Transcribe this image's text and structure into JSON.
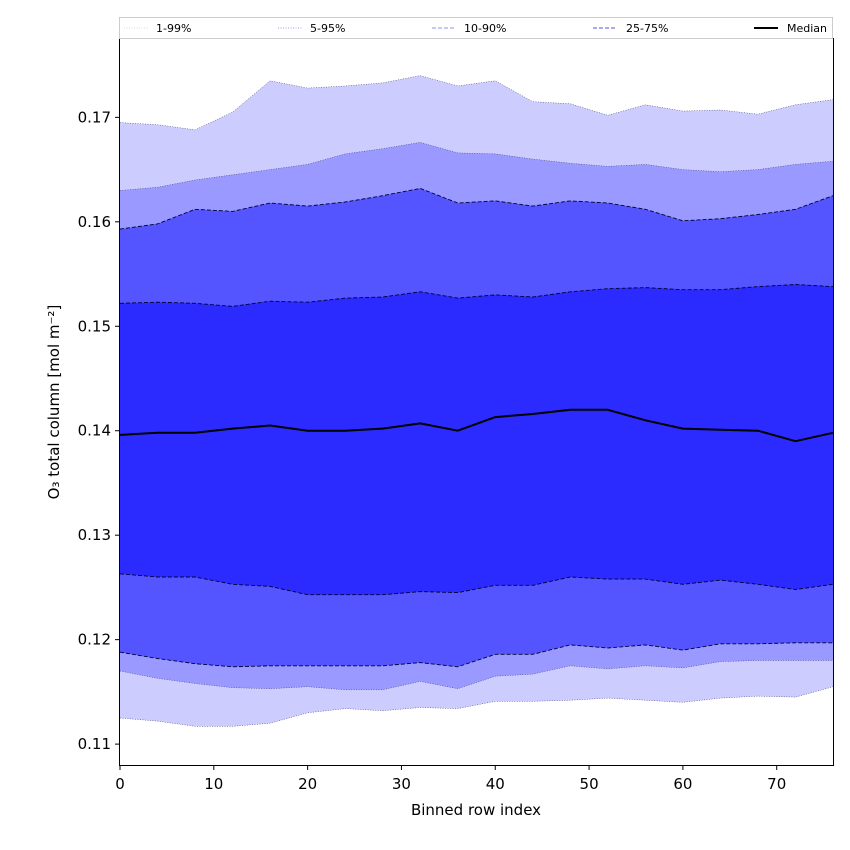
{
  "chart_data": {
    "type": "area",
    "xlabel": "Binned row index",
    "ylabel": "O₃ total column [mol m⁻²]",
    "xlim": [
      0,
      76
    ],
    "ylim": [
      0.108,
      0.1775
    ],
    "x_ticks": [
      0,
      10,
      20,
      30,
      40,
      50,
      60,
      70
    ],
    "y_ticks": [
      0.11,
      0.12,
      0.13,
      0.14,
      0.15,
      0.16,
      0.17
    ],
    "y_tick_labels": [
      "0.11",
      "0.12",
      "0.13",
      "0.14",
      "0.15",
      "0.16",
      "0.17"
    ],
    "grid": false,
    "legend_placement": "top",
    "legend": [
      {
        "label": "1-99%",
        "color": "#d3d3f5",
        "style": "dotted"
      },
      {
        "label": "5-95%",
        "color": "#9a9af5",
        "style": "dotted"
      },
      {
        "label": "10-90%",
        "color": "#8c8cf0",
        "style": "dashed"
      },
      {
        "label": "25-75%",
        "color": "#5555e8",
        "style": "dashed"
      },
      {
        "label": "Median",
        "color": "#000000",
        "style": "solid"
      }
    ],
    "x": [
      0,
      4,
      8,
      12,
      16,
      20,
      24,
      28,
      32,
      36,
      40,
      44,
      48,
      52,
      56,
      60,
      64,
      68,
      72,
      76
    ],
    "bands": [
      {
        "name": "1-99%",
        "fill": "#ccccff",
        "lower": [
          0.1125,
          0.1122,
          0.1117,
          0.1117,
          0.112,
          0.113,
          0.1134,
          0.1132,
          0.1135,
          0.1134,
          0.1141,
          0.1141,
          0.1142,
          0.1144,
          0.1142,
          0.114,
          0.1144,
          0.1146,
          0.1145,
          0.1155
        ],
        "upper": [
          0.1695,
          0.1693,
          0.1688,
          0.1705,
          0.1735,
          0.1728,
          0.173,
          0.1733,
          0.174,
          0.173,
          0.1735,
          0.1715,
          0.1713,
          0.1702,
          0.1712,
          0.1706,
          0.1707,
          0.1703,
          0.1712,
          0.1717
        ]
      },
      {
        "name": "5-95%",
        "fill": "#9999ff",
        "lower": [
          0.117,
          0.1163,
          0.1158,
          0.1154,
          0.1153,
          0.1155,
          0.1152,
          0.1152,
          0.116,
          0.1153,
          0.1165,
          0.1167,
          0.1175,
          0.1172,
          0.1175,
          0.1173,
          0.1179,
          0.118,
          0.118,
          0.118
        ],
        "upper": [
          0.163,
          0.1633,
          0.164,
          0.1645,
          0.165,
          0.1655,
          0.1665,
          0.167,
          0.1676,
          0.1666,
          0.1665,
          0.166,
          0.1656,
          0.1653,
          0.1655,
          0.165,
          0.1648,
          0.165,
          0.1655,
          0.1658
        ]
      },
      {
        "name": "10-90%",
        "fill": "#5555ff",
        "lower": [
          0.1188,
          0.1182,
          0.1177,
          0.1174,
          0.1175,
          0.1175,
          0.1175,
          0.1175,
          0.1178,
          0.1174,
          0.1186,
          0.1186,
          0.1195,
          0.1192,
          0.1195,
          0.119,
          0.1196,
          0.1196,
          0.1197,
          0.1197
        ],
        "upper": [
          0.1593,
          0.1598,
          0.1612,
          0.161,
          0.1618,
          0.1615,
          0.1619,
          0.1625,
          0.1632,
          0.1618,
          0.162,
          0.1615,
          0.162,
          0.1618,
          0.1612,
          0.1601,
          0.1603,
          0.1607,
          0.1612,
          0.1625
        ]
      },
      {
        "name": "25-75%",
        "fill": "#2b2bff",
        "lower": [
          0.1263,
          0.126,
          0.126,
          0.1253,
          0.1251,
          0.1243,
          0.1243,
          0.1243,
          0.1246,
          0.1245,
          0.1252,
          0.1252,
          0.126,
          0.1258,
          0.1258,
          0.1253,
          0.1257,
          0.1253,
          0.1248,
          0.1253
        ],
        "upper": [
          0.1522,
          0.1523,
          0.1522,
          0.1519,
          0.1524,
          0.1523,
          0.1527,
          0.1528,
          0.1533,
          0.1527,
          0.153,
          0.1528,
          0.1533,
          0.1536,
          0.1537,
          0.1535,
          0.1535,
          0.1538,
          0.154,
          0.1538
        ]
      }
    ],
    "series": [
      {
        "name": "Median",
        "color": "#000000",
        "values": [
          0.1396,
          0.1398,
          0.1398,
          0.1402,
          0.1405,
          0.14,
          0.14,
          0.1402,
          0.1407,
          0.14,
          0.1413,
          0.1416,
          0.142,
          0.142,
          0.141,
          0.1402,
          0.1401,
          0.14,
          0.139,
          0.1398
        ]
      }
    ]
  }
}
